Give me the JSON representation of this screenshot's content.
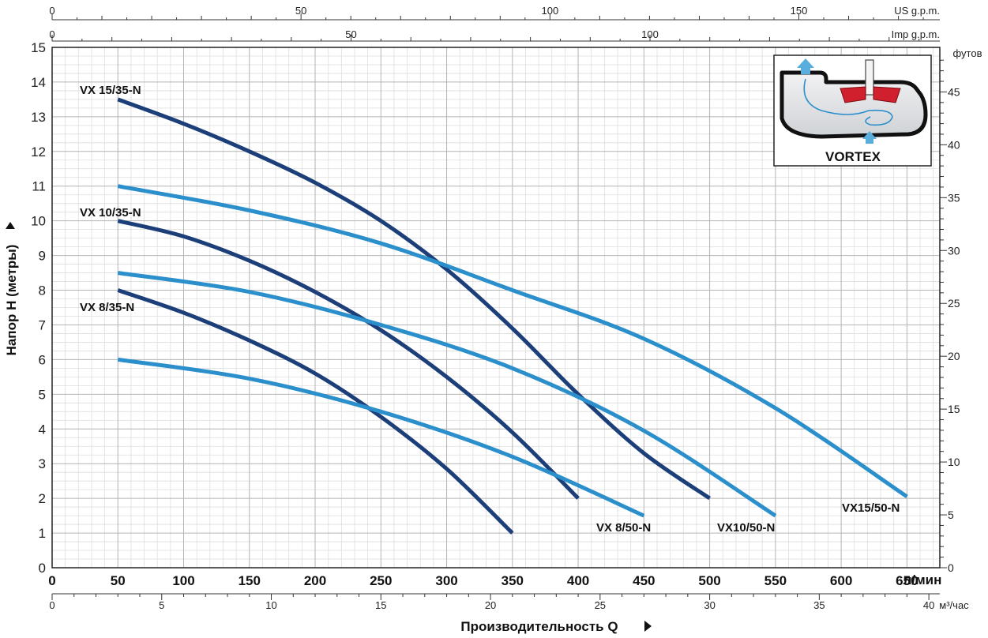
{
  "chart_data": {
    "type": "line",
    "ylabel": "Напор H (метры)",
    "xlabel": "Производительность  Q",
    "ylim": [
      0,
      15
    ],
    "xlim_lpm": [
      0,
      675
    ],
    "grid": true,
    "x_lpm_ticks": [
      "0",
      "50",
      "100",
      "150",
      "200",
      "250",
      "300",
      "350",
      "400",
      "450",
      "500",
      "550",
      "600",
      "650"
    ],
    "x_lpm_unit": "л/мин",
    "x_m3h_ticks": [
      "0",
      "5",
      "10",
      "15",
      "20",
      "25",
      "30",
      "35",
      "40"
    ],
    "x_m3h_unit": "м³/час",
    "x_us_ticks": [
      "0",
      "50",
      "100",
      "150"
    ],
    "x_us_unit": "US g.p.m.",
    "x_imp_ticks": [
      "0",
      "50",
      "100"
    ],
    "x_imp_unit": "Imp g.p.m.",
    "y_m_ticks": [
      "0",
      "1",
      "2",
      "3",
      "4",
      "5",
      "6",
      "7",
      "8",
      "9",
      "10",
      "11",
      "12",
      "13",
      "14",
      "15"
    ],
    "y_ft_ticks": [
      "0",
      "5",
      "10",
      "15",
      "20",
      "25",
      "30",
      "35",
      "40",
      "45"
    ],
    "y_ft_unit": "футов",
    "series": [
      {
        "name": "VX 15/35-N",
        "color": "#1c3f7a",
        "x": [
          50,
          100,
          150,
          200,
          250,
          300,
          350,
          400,
          450,
          500
        ],
        "y": [
          13.5,
          12.8,
          12.0,
          11.1,
          10.0,
          8.6,
          6.9,
          5.0,
          3.3,
          2.0
        ]
      },
      {
        "name": "VX 10/35-N",
        "color": "#1c3f7a",
        "x": [
          50,
          100,
          150,
          200,
          250,
          300,
          350,
          400
        ],
        "y": [
          10.0,
          9.55,
          8.85,
          7.95,
          6.85,
          5.5,
          3.9,
          2.0
        ]
      },
      {
        "name": "VX 8/35-N",
        "color": "#1c3f7a",
        "x": [
          50,
          100,
          150,
          200,
          250,
          300,
          350
        ],
        "y": [
          8.0,
          7.35,
          6.55,
          5.6,
          4.35,
          2.85,
          1.0
        ]
      },
      {
        "name": "VX15/50-N",
        "color": "#2b8fcb",
        "x": [
          50,
          150,
          250,
          350,
          450,
          550,
          650
        ],
        "y": [
          11.0,
          10.3,
          9.35,
          8.0,
          6.6,
          4.6,
          2.05
        ]
      },
      {
        "name": "VX10/50-N",
        "color": "#2b8fcb",
        "x": [
          50,
          150,
          250,
          350,
          450,
          550
        ],
        "y": [
          8.5,
          7.95,
          7.0,
          5.75,
          3.95,
          1.5
        ]
      },
      {
        "name": "VX 8/50-N",
        "color": "#2b8fcb",
        "x": [
          50,
          150,
          250,
          350,
          450
        ],
        "y": [
          6.0,
          5.45,
          4.5,
          3.2,
          1.5
        ]
      }
    ]
  },
  "inset": {
    "title": "VORTEX",
    "colors": {
      "fluid": "#d8dadd",
      "impeller": "#d0202e",
      "arrow": "#2b8fcb"
    }
  }
}
